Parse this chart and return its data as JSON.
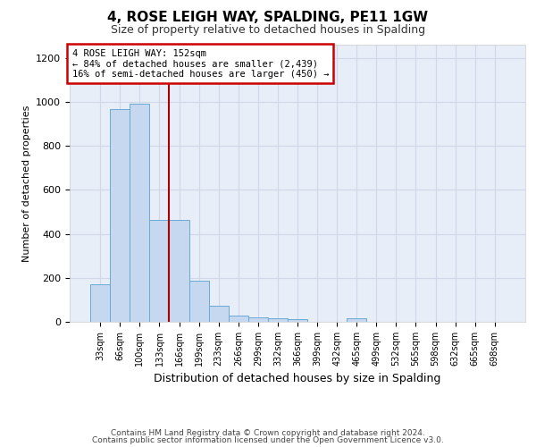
{
  "title": "4, ROSE LEIGH WAY, SPALDING, PE11 1GW",
  "subtitle": "Size of property relative to detached houses in Spalding",
  "xlabel": "Distribution of detached houses by size in Spalding",
  "ylabel": "Number of detached properties",
  "bar_color": "#c5d8ef",
  "bar_edge_color": "#6aaad4",
  "annotation_box_color": "#ffffff",
  "annotation_border_color": "#cc0000",
  "annotation_text_line1": "4 ROSE LEIGH WAY: 152sqm",
  "annotation_text_line2": "← 84% of detached houses are smaller (2,439)",
  "annotation_text_line3": "16% of semi-detached houses are larger (450) →",
  "vline_color": "#aa0000",
  "categories": [
    "33sqm",
    "66sqm",
    "100sqm",
    "133sqm",
    "166sqm",
    "199sqm",
    "233sqm",
    "266sqm",
    "299sqm",
    "332sqm",
    "366sqm",
    "399sqm",
    "432sqm",
    "465sqm",
    "499sqm",
    "532sqm",
    "565sqm",
    "598sqm",
    "632sqm",
    "665sqm",
    "698sqm"
  ],
  "values": [
    170,
    968,
    990,
    465,
    465,
    185,
    75,
    28,
    22,
    18,
    12,
    0,
    0,
    15,
    0,
    0,
    0,
    0,
    0,
    0,
    0
  ],
  "ylim": [
    0,
    1260
  ],
  "yticks": [
    0,
    200,
    400,
    600,
    800,
    1000,
    1200
  ],
  "background_color": "#e8eef8",
  "grid_color": "#d0d8e8",
  "fig_background": "#ffffff",
  "footer_line1": "Contains HM Land Registry data © Crown copyright and database right 2024.",
  "footer_line2": "Contains public sector information licensed under the Open Government Licence v3.0."
}
